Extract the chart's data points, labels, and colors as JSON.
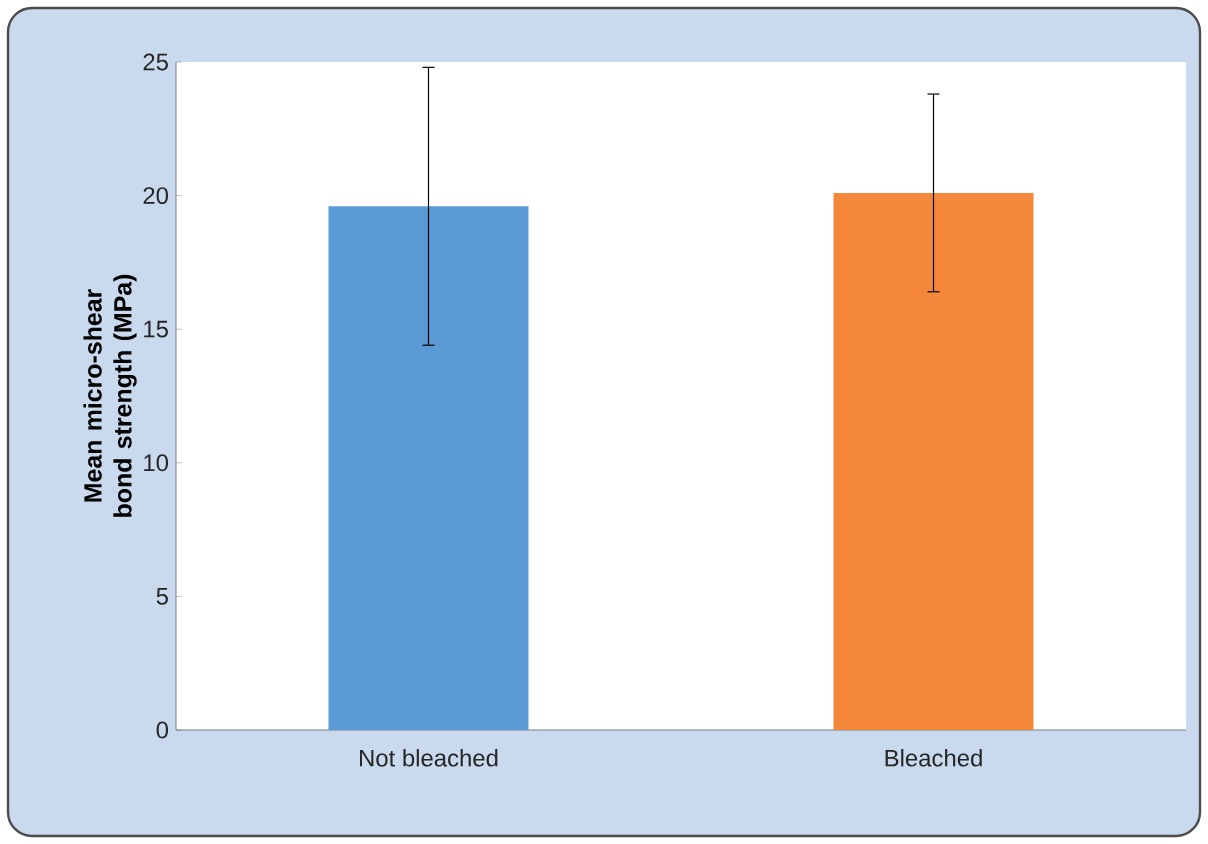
{
  "chart_data": {
    "type": "bar",
    "ylabel": "Mean micro-shear bond strength (MPa)",
    "categories": [
      "Not bleached",
      "Bleached"
    ],
    "values": [
      19.6,
      20.1
    ],
    "errors": [
      5.2,
      3.7
    ],
    "colors": [
      "#5b9bd5",
      "#f4873a"
    ],
    "ylim": [
      0,
      25
    ],
    "yticks": [
      0,
      5,
      10,
      15,
      20,
      25
    ],
    "grid": false
  }
}
